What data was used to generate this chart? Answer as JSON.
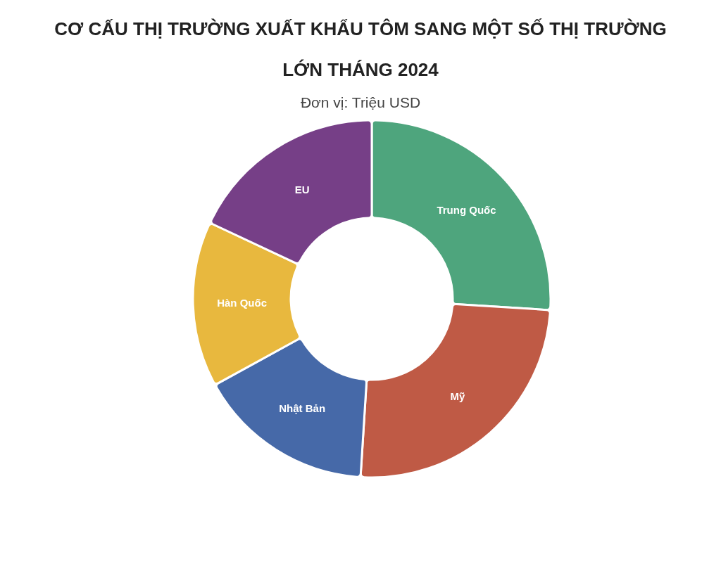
{
  "chart_data": {
    "type": "donut",
    "title": "CƠ CẤU THỊ TRƯỜNG XUẤT KHẨU TÔM SANG MỘT SỐ THỊ TRƯỜNG LỚN THÁNG 2024",
    "subtitle": "Đơn vị: Triệu USD",
    "categories": [
      "Trung Quốc",
      "Mỹ",
      "Nhật Bản",
      "Hàn Quốc",
      "EU"
    ],
    "values": [
      26,
      25,
      16,
      15,
      18
    ],
    "colors": [
      "#4ea57d",
      "#bf5a45",
      "#4669a8",
      "#e8b83e",
      "#763f87"
    ],
    "legend": false
  }
}
